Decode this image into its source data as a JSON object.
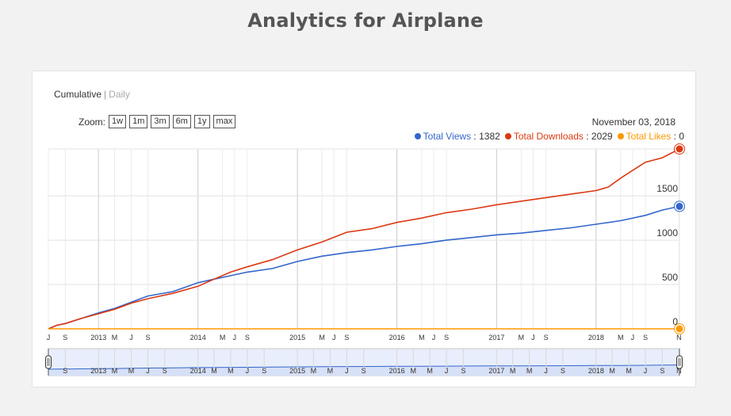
{
  "page": {
    "title": "Analytics for Airplane"
  },
  "controls": {
    "mode_active": "Cumulative",
    "mode_separator": "|",
    "mode_inactive": "Daily",
    "zoom_label": "Zoom:",
    "zoom_buttons": [
      "1w",
      "1m",
      "3m",
      "6m",
      "1y",
      "max"
    ]
  },
  "header": {
    "date": "November 03, 2018"
  },
  "legend": {
    "views_name": "Total Views",
    "views_value": "1382",
    "downloads_name": "Total Downloads",
    "downloads_value": "2029",
    "likes_name": "Total Likes",
    "likes_value": "0",
    "separator": " : "
  },
  "colors": {
    "views": "#3366cc",
    "downloads": "#dc3912",
    "likes": "#ff9900",
    "navigator_fill": "#e8eefb"
  },
  "chart_data": {
    "type": "line",
    "x_range": [
      "2012-07-01",
      "2018-11-03"
    ],
    "ylim": [
      0,
      2029
    ],
    "y_ticks": [
      0,
      500,
      1000,
      1500
    ],
    "grid": true,
    "x_tick_labels": [
      {
        "label": "J",
        "date": "2012-07-01"
      },
      {
        "label": "S",
        "date": "2012-09-01"
      },
      {
        "label": "2013",
        "date": "2013-01-01"
      },
      {
        "label": "M",
        "date": "2013-03-01"
      },
      {
        "label": "J",
        "date": "2013-05-01"
      },
      {
        "label": "S",
        "date": "2013-07-01"
      },
      {
        "label": "2014",
        "date": "2014-01-01"
      },
      {
        "label": "M",
        "date": "2014-04-01"
      },
      {
        "label": "J",
        "date": "2014-05-15"
      },
      {
        "label": "S",
        "date": "2014-07-01"
      },
      {
        "label": "2015",
        "date": "2015-01-01"
      },
      {
        "label": "M",
        "date": "2015-04-01"
      },
      {
        "label": "J",
        "date": "2015-05-15"
      },
      {
        "label": "S",
        "date": "2015-07-01"
      },
      {
        "label": "2016",
        "date": "2016-01-01"
      },
      {
        "label": "M",
        "date": "2016-04-01"
      },
      {
        "label": "J",
        "date": "2016-05-15"
      },
      {
        "label": "S",
        "date": "2016-07-01"
      },
      {
        "label": "2017",
        "date": "2017-01-01"
      },
      {
        "label": "M",
        "date": "2017-04-01"
      },
      {
        "label": "J",
        "date": "2017-05-15"
      },
      {
        "label": "S",
        "date": "2017-07-01"
      },
      {
        "label": "2018",
        "date": "2018-01-01"
      },
      {
        "label": "M",
        "date": "2018-04-01"
      },
      {
        "label": "J",
        "date": "2018-05-15"
      },
      {
        "label": "S",
        "date": "2018-07-01"
      },
      {
        "label": "N",
        "date": "2018-11-01"
      }
    ],
    "nav_tick_labels": [
      {
        "label": "S",
        "date": "2012-09-01"
      },
      {
        "label": "2013",
        "date": "2013-01-01"
      },
      {
        "label": "M",
        "date": "2013-03-01"
      },
      {
        "label": "M",
        "date": "2013-05-01"
      },
      {
        "label": "J",
        "date": "2013-07-01"
      },
      {
        "label": "S",
        "date": "2013-09-01"
      },
      {
        "label": "2014",
        "date": "2014-01-01"
      },
      {
        "label": "M",
        "date": "2014-03-01"
      },
      {
        "label": "M",
        "date": "2014-05-01"
      },
      {
        "label": "J",
        "date": "2014-07-01"
      },
      {
        "label": "S",
        "date": "2014-09-01"
      },
      {
        "label": "2015",
        "date": "2015-01-01"
      },
      {
        "label": "M",
        "date": "2015-03-01"
      },
      {
        "label": "M",
        "date": "2015-05-01"
      },
      {
        "label": "J",
        "date": "2015-07-01"
      },
      {
        "label": "S",
        "date": "2015-09-01"
      },
      {
        "label": "2016",
        "date": "2016-01-01"
      },
      {
        "label": "M",
        "date": "2016-03-01"
      },
      {
        "label": "M",
        "date": "2016-05-01"
      },
      {
        "label": "J",
        "date": "2016-07-01"
      },
      {
        "label": "S",
        "date": "2016-09-01"
      },
      {
        "label": "2017",
        "date": "2017-01-01"
      },
      {
        "label": "M",
        "date": "2017-03-01"
      },
      {
        "label": "M",
        "date": "2017-05-01"
      },
      {
        "label": "J",
        "date": "2017-07-01"
      },
      {
        "label": "S",
        "date": "2017-09-01"
      },
      {
        "label": "2018",
        "date": "2018-01-01"
      },
      {
        "label": "M",
        "date": "2018-03-01"
      },
      {
        "label": "M",
        "date": "2018-05-01"
      },
      {
        "label": "J",
        "date": "2018-07-01"
      },
      {
        "label": "S",
        "date": "2018-09-01"
      },
      {
        "label": "N",
        "date": "2018-11-01"
      }
    ],
    "series": [
      {
        "name": "Total Views",
        "x": [
          "2012-07-01",
          "2012-08-01",
          "2012-09-01",
          "2012-11-01",
          "2013-01-01",
          "2013-03-01",
          "2013-05-01",
          "2013-07-01",
          "2013-10-01",
          "2014-01-01",
          "2014-03-01",
          "2014-05-01",
          "2014-07-01",
          "2014-10-01",
          "2015-01-01",
          "2015-04-01",
          "2015-07-01",
          "2015-10-01",
          "2016-01-01",
          "2016-04-01",
          "2016-07-01",
          "2016-10-01",
          "2017-01-01",
          "2017-04-01",
          "2017-07-01",
          "2017-10-01",
          "2018-01-01",
          "2018-04-01",
          "2018-07-01",
          "2018-09-01",
          "2018-11-03"
        ],
        "y": [
          0,
          40,
          60,
          120,
          180,
          230,
          300,
          370,
          420,
          520,
          560,
          600,
          640,
          680,
          760,
          820,
          860,
          890,
          930,
          960,
          1000,
          1030,
          1060,
          1080,
          1110,
          1140,
          1180,
          1220,
          1280,
          1340,
          1382
        ]
      },
      {
        "name": "Total Downloads",
        "x": [
          "2012-07-01",
          "2012-08-01",
          "2012-09-01",
          "2012-11-01",
          "2013-01-01",
          "2013-03-01",
          "2013-05-01",
          "2013-07-01",
          "2013-10-01",
          "2014-01-01",
          "2014-03-01",
          "2014-05-01",
          "2014-07-01",
          "2014-10-01",
          "2015-01-01",
          "2015-04-01",
          "2015-07-01",
          "2015-10-01",
          "2016-01-01",
          "2016-04-01",
          "2016-07-01",
          "2016-10-01",
          "2017-01-01",
          "2017-04-01",
          "2017-07-01",
          "2017-10-01",
          "2018-01-01",
          "2018-02-15",
          "2018-04-01",
          "2018-07-01",
          "2018-09-01",
          "2018-11-03"
        ],
        "y": [
          0,
          40,
          60,
          120,
          170,
          220,
          290,
          340,
          400,
          480,
          560,
          640,
          700,
          780,
          890,
          980,
          1090,
          1130,
          1200,
          1250,
          1310,
          1350,
          1400,
          1440,
          1480,
          1520,
          1560,
          1600,
          1700,
          1880,
          1930,
          2029
        ]
      },
      {
        "name": "Total Likes",
        "x": [
          "2012-07-01",
          "2018-11-03"
        ],
        "y": [
          0,
          0
        ]
      }
    ]
  }
}
